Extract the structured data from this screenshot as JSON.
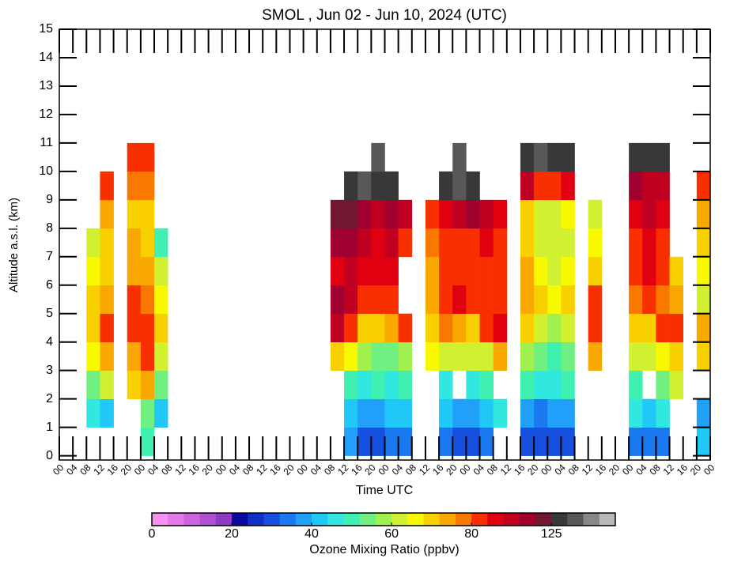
{
  "chart_data": {
    "type": "heatmap",
    "title": "SMOL , Jun 02 - Jun 10, 2024 (UTC)",
    "x_label": "Time UTC",
    "y_label": "Altitude a.s.l. (km)",
    "xlim": [
      0,
      192
    ],
    "ylim": [
      -0.15,
      15
    ],
    "yticks": [
      0,
      1,
      2,
      3,
      4,
      5,
      6,
      7,
      8,
      9,
      10,
      11,
      12,
      13,
      14,
      15
    ],
    "xticks": [
      {
        "value": 0,
        "label": "00"
      },
      {
        "value": 4,
        "label": "04"
      },
      {
        "value": 8,
        "label": "08"
      },
      {
        "value": 12,
        "label": "12"
      },
      {
        "value": 16,
        "label": "16"
      },
      {
        "value": 20,
        "label": "20"
      },
      {
        "value": 24,
        "label": "00"
      },
      {
        "value": 28,
        "label": "04"
      },
      {
        "value": 32,
        "label": "08"
      },
      {
        "value": 36,
        "label": "12"
      },
      {
        "value": 40,
        "label": "16"
      },
      {
        "value": 44,
        "label": "20"
      },
      {
        "value": 48,
        "label": "00"
      },
      {
        "value": 52,
        "label": "04"
      },
      {
        "value": 56,
        "label": "08"
      },
      {
        "value": 60,
        "label": "12"
      },
      {
        "value": 64,
        "label": "16"
      },
      {
        "value": 68,
        "label": "20"
      },
      {
        "value": 72,
        "label": "00"
      },
      {
        "value": 76,
        "label": "04"
      },
      {
        "value": 80,
        "label": "08"
      },
      {
        "value": 84,
        "label": "12"
      },
      {
        "value": 88,
        "label": "16"
      },
      {
        "value": 92,
        "label": "20"
      },
      {
        "value": 96,
        "label": "00"
      },
      {
        "value": 100,
        "label": "04"
      },
      {
        "value": 104,
        "label": "08"
      },
      {
        "value": 108,
        "label": "12"
      },
      {
        "value": 112,
        "label": "16"
      },
      {
        "value": 116,
        "label": "20"
      },
      {
        "value": 120,
        "label": "00"
      },
      {
        "value": 124,
        "label": "04"
      },
      {
        "value": 128,
        "label": "08"
      },
      {
        "value": 132,
        "label": "12"
      },
      {
        "value": 136,
        "label": "16"
      },
      {
        "value": 140,
        "label": "20"
      },
      {
        "value": 144,
        "label": "00"
      },
      {
        "value": 148,
        "label": "04"
      },
      {
        "value": 152,
        "label": "08"
      },
      {
        "value": 156,
        "label": "12"
      },
      {
        "value": 160,
        "label": "16"
      },
      {
        "value": 164,
        "label": "20"
      },
      {
        "value": 168,
        "label": "00"
      },
      {
        "value": 172,
        "label": "04"
      },
      {
        "value": 176,
        "label": "08"
      },
      {
        "value": 180,
        "label": "12"
      },
      {
        "value": 184,
        "label": "16"
      },
      {
        "value": 188,
        "label": "20"
      },
      {
        "value": 192,
        "label": "00"
      }
    ],
    "x_edges": [
      0,
      4,
      8,
      12,
      16,
      20,
      24,
      28,
      32,
      36,
      40,
      44,
      48,
      52,
      56,
      60,
      64,
      68,
      72,
      76,
      80,
      84,
      88,
      92,
      96,
      100,
      104,
      108,
      112,
      116,
      120,
      124,
      128,
      132,
      136,
      140,
      144,
      148,
      152,
      156,
      160,
      164,
      168,
      172,
      176,
      180,
      184,
      188,
      192
    ],
    "y_edges": [
      0,
      1,
      2,
      3,
      4,
      5,
      6,
      7,
      8,
      9,
      10,
      11
    ],
    "z": [
      [
        null,
        null,
        null,
        null,
        null,
        null,
        null,
        null,
        null,
        null,
        null
      ],
      [
        null,
        null,
        null,
        null,
        null,
        null,
        null,
        null,
        null,
        null,
        null
      ],
      [
        null,
        45,
        55,
        65,
        70,
        68,
        65,
        60,
        null,
        null,
        null
      ],
      [
        null,
        40,
        60,
        72,
        85,
        75,
        70,
        68,
        75,
        80,
        null
      ],
      [
        null,
        null,
        null,
        null,
        null,
        null,
        null,
        null,
        null,
        null,
        null
      ],
      [
        null,
        null,
        70,
        75,
        80,
        85,
        75,
        72,
        70,
        78,
        85
      ],
      [
        48,
        55,
        75,
        80,
        85,
        78,
        72,
        68,
        70,
        78,
        88
      ],
      [
        null,
        40,
        55,
        60,
        70,
        65,
        60,
        50,
        null,
        null,
        null
      ],
      [
        null,
        null,
        null,
        null,
        null,
        null,
        null,
        null,
        null,
        null,
        null
      ],
      [
        null,
        null,
        null,
        null,
        null,
        null,
        null,
        null,
        null,
        null,
        null
      ],
      [
        null,
        null,
        null,
        null,
        null,
        null,
        null,
        null,
        null,
        null,
        null
      ],
      [
        null,
        null,
        null,
        null,
        null,
        null,
        null,
        null,
        null,
        null,
        null
      ],
      [
        null,
        null,
        null,
        null,
        null,
        null,
        null,
        null,
        null,
        null,
        null
      ],
      [
        null,
        null,
        null,
        null,
        null,
        null,
        null,
        null,
        null,
        null,
        null
      ],
      [
        null,
        null,
        null,
        null,
        null,
        null,
        null,
        null,
        null,
        null,
        null
      ],
      [
        null,
        null,
        null,
        null,
        null,
        null,
        null,
        null,
        null,
        null,
        null
      ],
      [
        null,
        null,
        null,
        null,
        null,
        null,
        null,
        null,
        null,
        null,
        null
      ],
      [
        null,
        null,
        null,
        null,
        null,
        null,
        null,
        null,
        null,
        null,
        null
      ],
      [
        null,
        null,
        null,
        null,
        null,
        null,
        null,
        null,
        null,
        null,
        null
      ],
      [
        null,
        null,
        null,
        null,
        null,
        null,
        null,
        null,
        null,
        null,
        null
      ],
      [
        null,
        null,
        null,
        70,
        100,
        110,
        90,
        110,
        120,
        null,
        null
      ],
      [
        38,
        42,
        50,
        65,
        85,
        100,
        105,
        108,
        118,
        130,
        null
      ],
      [
        28,
        38,
        45,
        58,
        70,
        85,
        95,
        100,
        110,
        135,
        null
      ],
      [
        30,
        38,
        48,
        55,
        68,
        80,
        90,
        95,
        105,
        128,
        140
      ],
      [
        32,
        40,
        45,
        55,
        72,
        82,
        90,
        98,
        108,
        130,
        null
      ],
      [
        35,
        42,
        48,
        58,
        80,
        null,
        null,
        85,
        100,
        null,
        null
      ],
      [
        null,
        null,
        null,
        null,
        null,
        null,
        null,
        null,
        null,
        null,
        null
      ],
      [
        null,
        null,
        null,
        65,
        70,
        75,
        72,
        78,
        85,
        null,
        null
      ],
      [
        35,
        40,
        45,
        62,
        78,
        88,
        85,
        80,
        95,
        130,
        null
      ],
      [
        30,
        38,
        null,
        60,
        75,
        90,
        88,
        85,
        105,
        135,
        140
      ],
      [
        30,
        38,
        45,
        62,
        70,
        85,
        80,
        88,
        112,
        132,
        null
      ],
      [
        32,
        40,
        50,
        62,
        80,
        85,
        80,
        90,
        105,
        null,
        null
      ],
      [
        null,
        45,
        null,
        72,
        90,
        85,
        80,
        88,
        95,
        null,
        null
      ],
      [
        null,
        null,
        null,
        null,
        null,
        null,
        null,
        null,
        null,
        null,
        null
      ],
      [
        30,
        38,
        48,
        58,
        70,
        75,
        72,
        68,
        70,
        100,
        130
      ],
      [
        28,
        35,
        45,
        52,
        60,
        68,
        65,
        62,
        62,
        88,
        135
      ],
      [
        28,
        36,
        45,
        50,
        58,
        65,
        62,
        60,
        62,
        85,
        132
      ],
      [
        30,
        38,
        50,
        55,
        62,
        70,
        65,
        62,
        65,
        90,
        130
      ],
      [
        null,
        null,
        null,
        null,
        null,
        null,
        null,
        null,
        null,
        null,
        null
      ],
      [
        null,
        null,
        null,
        75,
        88,
        85,
        70,
        65,
        60,
        null,
        null
      ],
      [
        null,
        null,
        null,
        null,
        null,
        null,
        null,
        null,
        null,
        null,
        null
      ],
      [
        null,
        null,
        null,
        null,
        null,
        null,
        null,
        null,
        null,
        null,
        null
      ],
      [
        35,
        45,
        50,
        62,
        70,
        78,
        82,
        88,
        95,
        110,
        130
      ],
      [
        32,
        42,
        null,
        60,
        68,
        80,
        90,
        95,
        100,
        100,
        125
      ],
      [
        35,
        45,
        55,
        65,
        80,
        78,
        85,
        88,
        92,
        98,
        130
      ],
      [
        null,
        null,
        60,
        70,
        80,
        75,
        70,
        null,
        null,
        null,
        null
      ],
      [
        null,
        null,
        null,
        null,
        null,
        null,
        null,
        null,
        null,
        null,
        null
      ],
      [
        40,
        38,
        null,
        70,
        72,
        60,
        65,
        70,
        72,
        80,
        null
      ]
    ],
    "colorbar": {
      "label": "Ozone Mixing Ratio (ppbv)",
      "levels": [
        0,
        4,
        8,
        12,
        16,
        20,
        24,
        28,
        32,
        36,
        40,
        44,
        48,
        52,
        56,
        60,
        64,
        68,
        72,
        76,
        80,
        89,
        98,
        107,
        116,
        125,
        134,
        143,
        152,
        161
      ],
      "colors": [
        "#f592f0",
        "#e27ae8",
        "#cc64e0",
        "#b04fd4",
        "#8e3bc4",
        "#0a0aa0",
        "#1030c8",
        "#1550e0",
        "#1a78f0",
        "#20a0f8",
        "#20c8f8",
        "#30e8e0",
        "#40f0b0",
        "#70f080",
        "#a0f050",
        "#d0f030",
        "#f8f800",
        "#f8d000",
        "#f8a800",
        "#f87800",
        "#f83000",
        "#e00010",
        "#c00020",
        "#a00030",
        "#701830",
        "#383838",
        "#585858",
        "#888888",
        "#b8b8b8"
      ],
      "ticks": [
        0,
        20,
        40,
        60,
        80,
        125
      ]
    }
  }
}
